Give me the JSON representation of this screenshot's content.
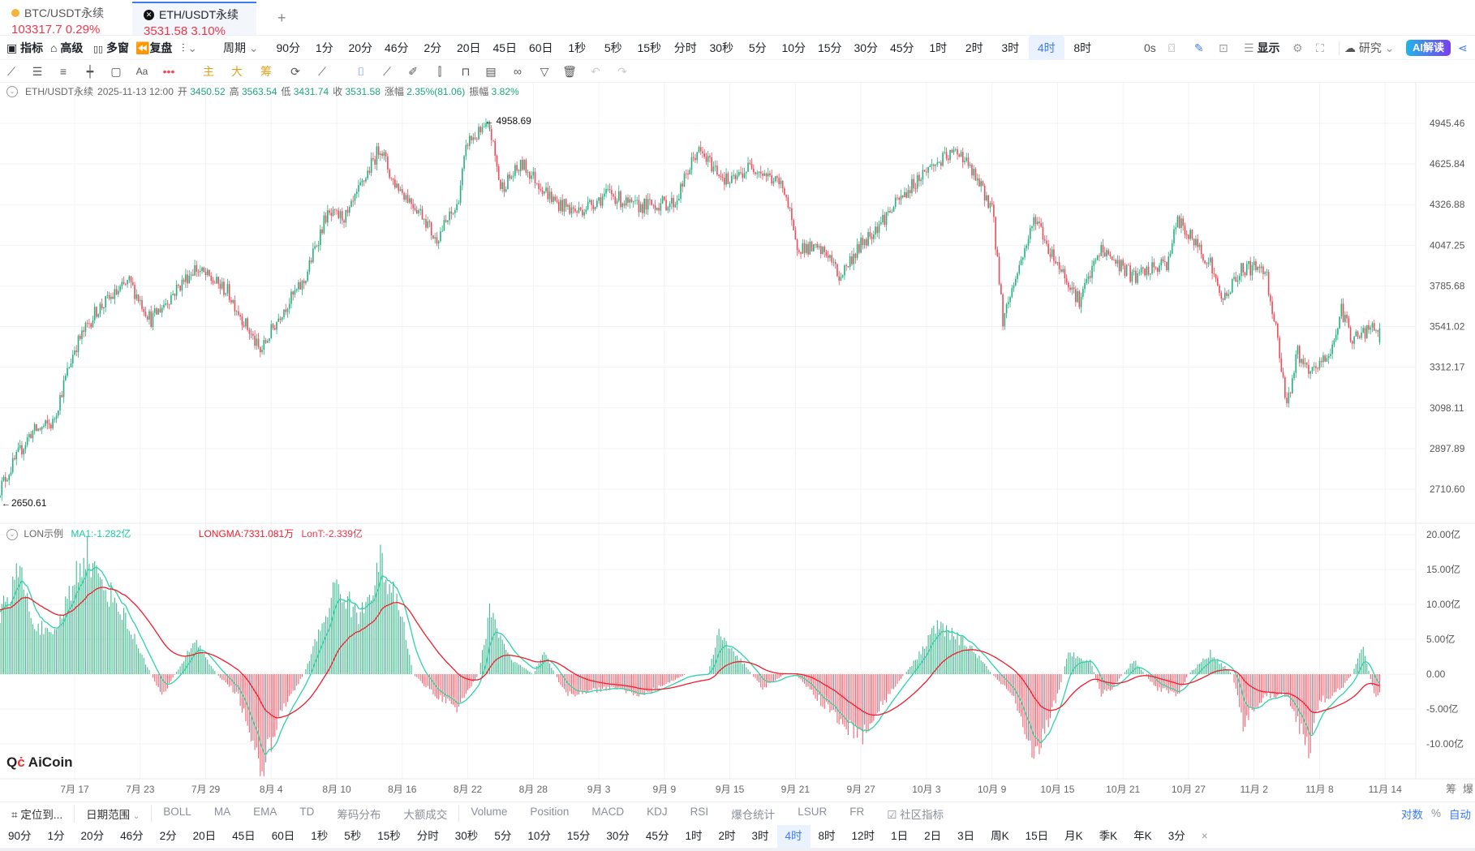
{
  "tabs": [
    {
      "symbol": "BTC/USDT永续",
      "price": "103317.7",
      "change": "0.29%",
      "icon": "btc-coin-icon"
    },
    {
      "symbol": "ETH/USDT永续",
      "price": "3531.58",
      "change": "3.10%",
      "icon": "eth-coin-icon",
      "active": true
    }
  ],
  "add_tab": "+",
  "toolbar": {
    "indicators": "指标",
    "advanced": "高级",
    "multi_window": "多窗",
    "replay": "复盘",
    "period": "周期",
    "intervals": [
      "90分",
      "1分",
      "20分",
      "46分",
      "2分",
      "20日",
      "45日",
      "60日",
      "1秒",
      "5秒",
      "15秒",
      "分时",
      "30秒",
      "5分",
      "10分",
      "15分",
      "30分",
      "45分",
      "1时",
      "2时",
      "3时",
      "4时",
      "8时"
    ],
    "active_interval": "4时",
    "countdown": "0s",
    "display": "显示",
    "research": "研究",
    "ai": "AI解读"
  },
  "drawing": {
    "main": "主",
    "big": "大",
    "chips": "筹",
    "text": "Aa"
  },
  "info": {
    "symbol": "ETH/USDT永续",
    "time": "2025-11-13 12:00",
    "open_label": "开",
    "open": "3450.52",
    "high_label": "高",
    "high": "3563.54",
    "low_label": "低",
    "low": "3431.74",
    "close_label": "收",
    "close": "3531.58",
    "chg_label": "涨幅",
    "chg": "2.35%(81.06)",
    "amp_label": "振幅",
    "amp": "3.82%"
  },
  "indicator": {
    "name": "LON示例",
    "ma1": "MA1:-1.282亿",
    "longma": "LONGMA:7331.081万",
    "lont": "LonT:-2.339亿"
  },
  "colors": {
    "up": "#22b07d",
    "down": "#f04a5a",
    "ma1": "#2fd3a8",
    "longma": "#f21c2c",
    "accent": "#3b7cf5"
  },
  "watermark": "AiCoin",
  "chart_data": {
    "type": "candlestick",
    "interval": "4h",
    "scale": "log",
    "price_ticks": [
      "4945.46",
      "4625.84",
      "4326.88",
      "4047.25",
      "3785.68",
      "3541.02",
      "3312.17",
      "3098.11",
      "2897.89",
      "2710.60"
    ],
    "date_ticks": [
      "7月 17",
      "7月 23",
      "7月 29",
      "8月 4",
      "8月 10",
      "8月 16",
      "8月 22",
      "8月 28",
      "9月 3",
      "9月 9",
      "9月 15",
      "9月 21",
      "9月 27",
      "10月 3",
      "10月 9",
      "10月 15",
      "10月 21",
      "10月 27",
      "11月 2",
      "11月 8",
      "11月 14"
    ],
    "max_mark": {
      "date": "2025-08-24",
      "value": "4958.69"
    },
    "min_mark": {
      "date": "2025-07-10",
      "value": "2650.61"
    },
    "close_path": [
      [
        "2025-07-10",
        2700
      ],
      [
        "2025-07-13",
        2975
      ],
      [
        "2025-07-15",
        3021
      ],
      [
        "2025-07-17",
        3418
      ],
      [
        "2025-07-19",
        3636
      ],
      [
        "2025-07-22",
        3809
      ],
      [
        "2025-07-24",
        3581
      ],
      [
        "2025-07-28",
        3899
      ],
      [
        "2025-07-31",
        3751
      ],
      [
        "2025-08-03",
        3392
      ],
      [
        "2025-08-05",
        3636
      ],
      [
        "2025-08-07",
        3809
      ],
      [
        "2025-08-09",
        4244
      ],
      [
        "2025-08-11",
        4244
      ],
      [
        "2025-08-14",
        4765
      ],
      [
        "2025-08-15",
        4514
      ],
      [
        "2025-08-18",
        4244
      ],
      [
        "2025-08-19",
        4083
      ],
      [
        "2025-08-21",
        4310
      ],
      [
        "2025-08-22",
        4803
      ],
      [
        "2025-08-24",
        4915
      ],
      [
        "2025-08-25",
        4446
      ],
      [
        "2025-08-27",
        4620
      ],
      [
        "2025-08-30",
        4344
      ],
      [
        "2025-09-01",
        4277
      ],
      [
        "2025-09-04",
        4411
      ],
      [
        "2025-09-06",
        4310
      ],
      [
        "2025-09-10",
        4344
      ],
      [
        "2025-09-12",
        4729
      ],
      [
        "2025-09-15",
        4480
      ],
      [
        "2025-09-17",
        4620
      ],
      [
        "2025-09-20",
        4446
      ],
      [
        "2025-09-21",
        4052
      ],
      [
        "2025-09-24",
        3990
      ],
      [
        "2025-09-25",
        3839
      ],
      [
        "2025-09-27",
        4052
      ],
      [
        "2025-09-30",
        4310
      ],
      [
        "2025-10-03",
        4585
      ],
      [
        "2025-10-06",
        4729
      ],
      [
        "2025-10-08",
        4446
      ],
      [
        "2025-10-09",
        4310
      ],
      [
        "2025-10-10",
        3581
      ],
      [
        "2025-10-13",
        4244
      ],
      [
        "2025-10-14",
        4052
      ],
      [
        "2025-10-17",
        3693
      ],
      [
        "2025-10-19",
        4021
      ],
      [
        "2025-10-22",
        3839
      ],
      [
        "2025-10-25",
        3930
      ],
      [
        "2025-10-26",
        4212
      ],
      [
        "2025-10-29",
        3930
      ],
      [
        "2025-10-30",
        3693
      ],
      [
        "2025-11-01",
        3899
      ],
      [
        "2025-11-03",
        3899
      ],
      [
        "2025-11-04",
        3526
      ],
      [
        "2025-11-05",
        3115
      ],
      [
        "2025-11-06",
        3392
      ],
      [
        "2025-11-07",
        3264
      ],
      [
        "2025-11-09",
        3392
      ],
      [
        "2025-11-10",
        3636
      ],
      [
        "2025-11-11",
        3472
      ],
      [
        "2025-11-13",
        3531.58
      ]
    ],
    "lon_ticks": [
      "20.00亿",
      "15.00亿",
      "10.00亿",
      "5.00亿",
      "0.00",
      "-5.00亿",
      "-10.00亿"
    ],
    "lon_unit": "亿",
    "lon_path": [
      [
        "2025-07-10",
        8
      ],
      [
        "2025-07-12",
        15
      ],
      [
        "2025-07-13",
        8
      ],
      [
        "2025-07-15",
        5
      ],
      [
        "2025-07-18",
        18
      ],
      [
        "2025-07-19",
        14
      ],
      [
        "2025-07-21",
        10
      ],
      [
        "2025-07-24",
        0
      ],
      [
        "2025-07-25",
        -3
      ],
      [
        "2025-07-27",
        2
      ],
      [
        "2025-07-28",
        5
      ],
      [
        "2025-07-30",
        0
      ],
      [
        "2025-08-01",
        -3
      ],
      [
        "2025-08-03",
        -14
      ],
      [
        "2025-08-05",
        -5
      ],
      [
        "2025-08-07",
        0
      ],
      [
        "2025-08-10",
        13
      ],
      [
        "2025-08-12",
        8
      ],
      [
        "2025-08-14",
        16
      ],
      [
        "2025-08-16",
        8
      ],
      [
        "2025-08-17",
        0
      ],
      [
        "2025-08-19",
        -3
      ],
      [
        "2025-08-21",
        -5
      ],
      [
        "2025-08-23",
        0
      ],
      [
        "2025-08-24",
        9
      ],
      [
        "2025-08-26",
        2
      ],
      [
        "2025-08-28",
        0
      ],
      [
        "2025-08-29",
        3
      ],
      [
        "2025-08-30",
        0
      ],
      [
        "2025-08-31",
        -3
      ],
      [
        "2025-09-04",
        -2
      ],
      [
        "2025-09-07",
        -3
      ],
      [
        "2025-09-11",
        0
      ],
      [
        "2025-09-13",
        0
      ],
      [
        "2025-09-14",
        6
      ],
      [
        "2025-09-16",
        2
      ],
      [
        "2025-09-18",
        -2
      ],
      [
        "2025-09-20",
        0
      ],
      [
        "2025-09-21",
        0
      ],
      [
        "2025-09-24",
        -5
      ],
      [
        "2025-09-27",
        -9
      ],
      [
        "2025-09-30",
        -2
      ],
      [
        "2025-10-02",
        2
      ],
      [
        "2025-10-04",
        7
      ],
      [
        "2025-10-07",
        4
      ],
      [
        "2025-10-09",
        0
      ],
      [
        "2025-10-11",
        -3
      ],
      [
        "2025-10-13",
        -12
      ],
      [
        "2025-10-15",
        -3
      ],
      [
        "2025-10-16",
        3
      ],
      [
        "2025-10-18",
        2
      ],
      [
        "2025-10-19",
        -3
      ],
      [
        "2025-10-20",
        -2
      ],
      [
        "2025-10-22",
        2
      ],
      [
        "2025-10-24",
        -2
      ],
      [
        "2025-10-26",
        -3
      ],
      [
        "2025-10-27",
        0
      ],
      [
        "2025-10-29",
        3
      ],
      [
        "2025-10-31",
        0
      ],
      [
        "2025-11-01",
        -7
      ],
      [
        "2025-11-03",
        -3
      ],
      [
        "2025-11-05",
        -3
      ],
      [
        "2025-11-07",
        -11
      ],
      [
        "2025-11-08",
        -4
      ],
      [
        "2025-11-10",
        -2
      ],
      [
        "2025-11-11",
        0
      ],
      [
        "2025-11-12",
        4
      ],
      [
        "2025-11-13",
        -3
      ]
    ]
  },
  "right_axis_tools": {
    "chips": "筹",
    "liq": "爆"
  },
  "bottom": {
    "locate": "定位到...",
    "date_range": "日期范围",
    "indicators": [
      "BOLL",
      "MA",
      "EMA",
      "TD",
      "筹码分布",
      "大额成交"
    ],
    "sub_indicators": [
      "Volume",
      "Position",
      "MACD",
      "KDJ",
      "RSI",
      "爆仓统计",
      "LSUR",
      "FR"
    ],
    "community": "社区指标",
    "log": "对数",
    "pct": "%",
    "auto": "自动",
    "intervals": [
      "90分",
      "1分",
      "20分",
      "46分",
      "2分",
      "20日",
      "45日",
      "60日",
      "1秒",
      "5秒",
      "15秒",
      "分时",
      "30秒",
      "5分",
      "10分",
      "15分",
      "30分",
      "45分",
      "1时",
      "2时",
      "3时",
      "4时",
      "8时",
      "12时",
      "1日",
      "2日",
      "3日",
      "周K",
      "15日",
      "月K",
      "季K",
      "年K",
      "3分"
    ],
    "active_interval": "4时",
    "close": "×"
  }
}
